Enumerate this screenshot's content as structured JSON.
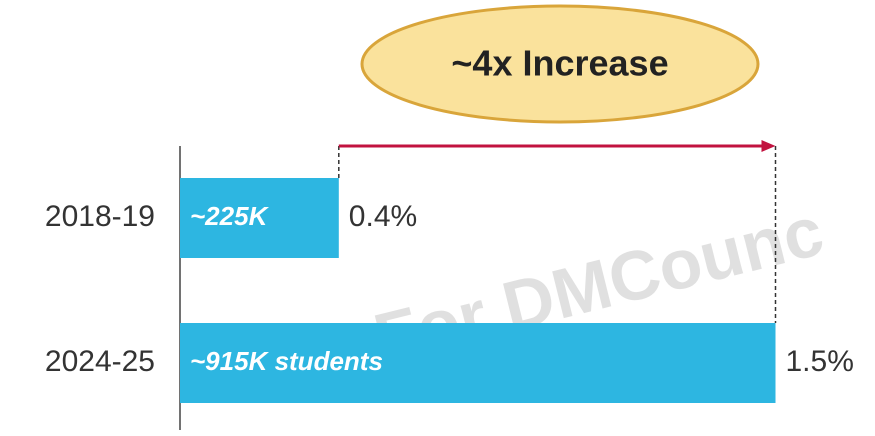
{
  "chart_data": {
    "type": "bar",
    "orientation": "horizontal",
    "categories": [
      "2018-19",
      "2024-25"
    ],
    "values": [
      0.4,
      1.5
    ],
    "value_labels": [
      "0.4%",
      "1.5%"
    ],
    "bar_labels": [
      "~225K",
      "~915K students"
    ],
    "color": "#2db6e1",
    "annotation": "~4x Increase",
    "arrow_color": "#c2123f",
    "watermark": "For DMCounc"
  }
}
